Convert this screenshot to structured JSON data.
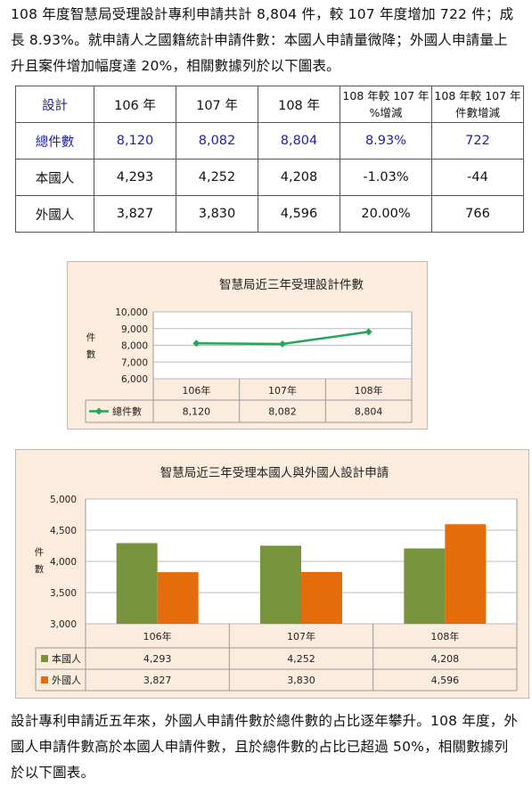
{
  "intro_text": "108 年度智慧局受理設計專利申請共計 8,804 件，較 107 年度增加 722 件；成長 8.93%。就申請人之國籍統計申請件數：本國人申請量微降；外國人申請量上升且案件增加幅度達 20%，相關數據列於以下圖表。",
  "table": {
    "headers": [
      "設計",
      "106 年",
      "107 年",
      "108 年",
      "108 年較 107 年",
      "108 年較 107 年"
    ],
    "headers_line2": [
      "",
      "",
      "",
      "",
      "%增減",
      "件數增減"
    ],
    "rows": [
      [
        "總件數",
        "8,120",
        "8,082",
        "8,804",
        "8.93%",
        "722"
      ],
      [
        "本國人",
        "4,293",
        "4,252",
        "4,208",
        "-1.03%",
        "-44"
      ],
      [
        "外國人",
        "3,827",
        "3,830",
        "4,596",
        "20.00%",
        "766"
      ]
    ]
  },
  "outro_text": "設計專利申請近五年來，外國人申請件數於總件數的占比逐年攀升。108 年度，外國人申請件數高於本國人申請件數，且於總件數的占比已超過 50%，相關數據列於以下圖表。",
  "colors": {
    "line": "#25a55a",
    "domestic": "#77933c",
    "foreign": "#e46c0a",
    "bg": "#fbecde"
  },
  "chart_data": [
    {
      "type": "line",
      "title": "智慧局近三年受理設計件數",
      "ylabel": "件數",
      "categories": [
        "106年",
        "107年",
        "108年"
      ],
      "ylim": [
        6000,
        10000
      ],
      "yticks": [
        "10,000",
        "9,000",
        "8,000",
        "7,000",
        "6,000"
      ],
      "series": [
        {
          "name": "總件數",
          "values": [
            8120,
            8082,
            8804
          ],
          "labels": [
            "8,120",
            "8,082",
            "8,804"
          ]
        }
      ],
      "grid": true,
      "legend": "data-table"
    },
    {
      "type": "bar",
      "title": "智慧局近三年受理本國人與外國人設計申請",
      "ylabel": "件數",
      "categories": [
        "106年",
        "107年",
        "108年"
      ],
      "ylim": [
        3000,
        5000
      ],
      "yticks": [
        "5,000",
        "4,500",
        "4,000",
        "3,500",
        "3,000"
      ],
      "series": [
        {
          "name": "本國人",
          "values": [
            4293,
            4252,
            4208
          ],
          "labels": [
            "4,293",
            "4,252",
            "4,208"
          ]
        },
        {
          "name": "外國人",
          "values": [
            3827,
            3830,
            4596
          ],
          "labels": [
            "3,827",
            "3,830",
            "4,596"
          ]
        }
      ],
      "grid": true,
      "legend": "data-table"
    }
  ]
}
